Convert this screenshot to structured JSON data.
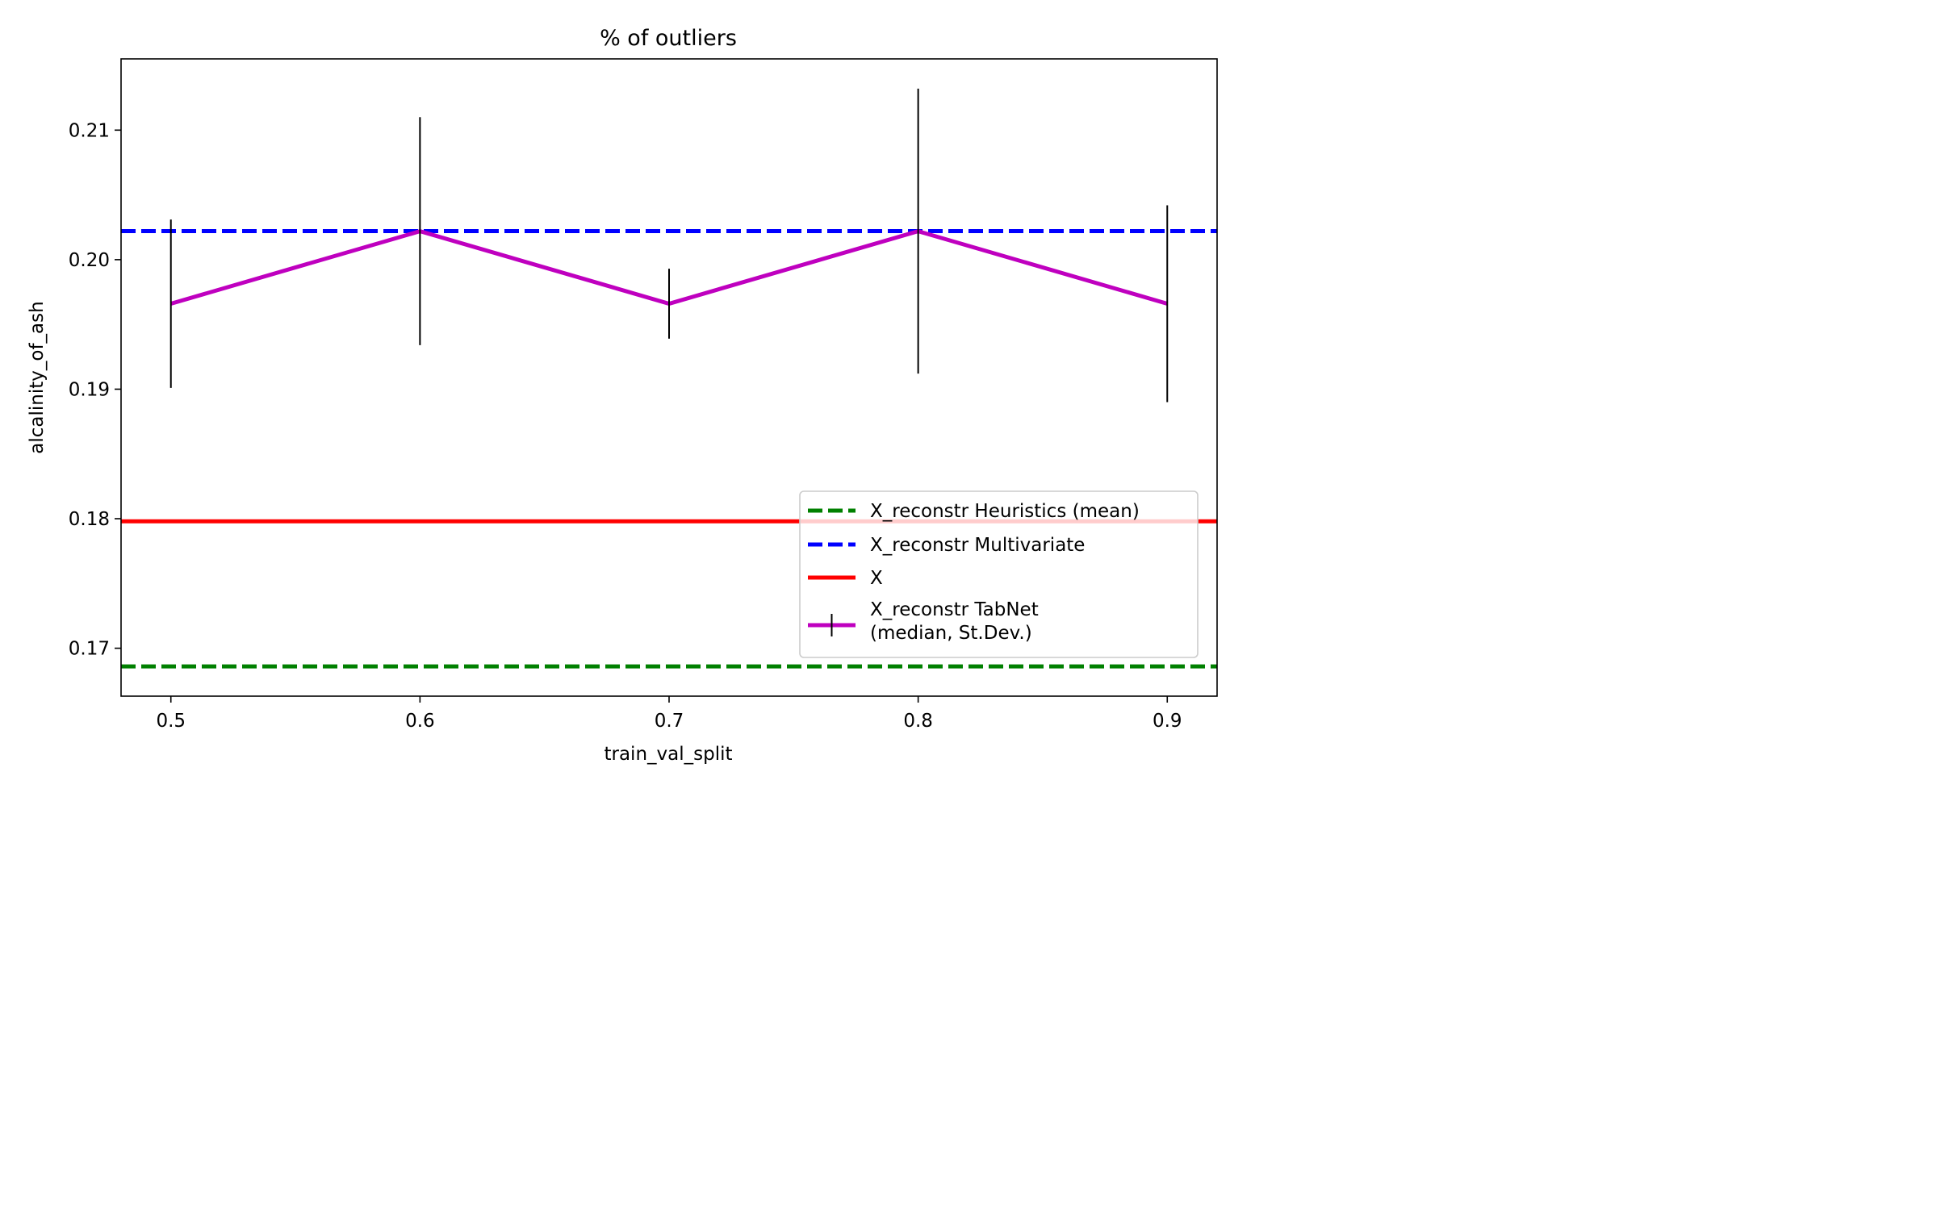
{
  "chart_data": {
    "type": "line",
    "title": "% of outliers",
    "xlabel": "train_val_split",
    "ylabel": "alcalinity_of_ash",
    "xlim": [
      0.48,
      0.92
    ],
    "ylim": [
      0.1663,
      0.2155
    ],
    "xticks": [
      0.5,
      0.6,
      0.7,
      0.8,
      0.9
    ],
    "xtick_labels": [
      "0.5",
      "0.6",
      "0.7",
      "0.8",
      "0.9"
    ],
    "yticks": [
      0.17,
      0.18,
      0.19,
      0.2,
      0.21
    ],
    "ytick_labels": [
      "0.17",
      "0.18",
      "0.19",
      "0.20",
      "0.21"
    ],
    "grid": false,
    "legend_position": "lower-right",
    "series": [
      {
        "name": "X_reconstr Heuristics (mean)",
        "kind": "hline",
        "y": 0.1686,
        "color": "#008000",
        "style": "dashed"
      },
      {
        "name": "X_reconstr Multivariate",
        "kind": "hline",
        "y": 0.2022,
        "color": "#0000ff",
        "style": "dashed"
      },
      {
        "name": "X",
        "kind": "hline",
        "y": 0.1798,
        "color": "#ff0000",
        "style": "solid"
      },
      {
        "name": "X_reconstr TabNet\n(median, St.Dev.)",
        "kind": "errorbar",
        "color": "#bf00bf",
        "x": [
          0.5,
          0.6,
          0.7,
          0.8,
          0.9
        ],
        "y": [
          0.1966,
          0.2022,
          0.1966,
          0.2022,
          0.1966
        ],
        "yerr": [
          0.0065,
          0.0088,
          0.0027,
          0.011,
          0.0076
        ]
      }
    ]
  }
}
